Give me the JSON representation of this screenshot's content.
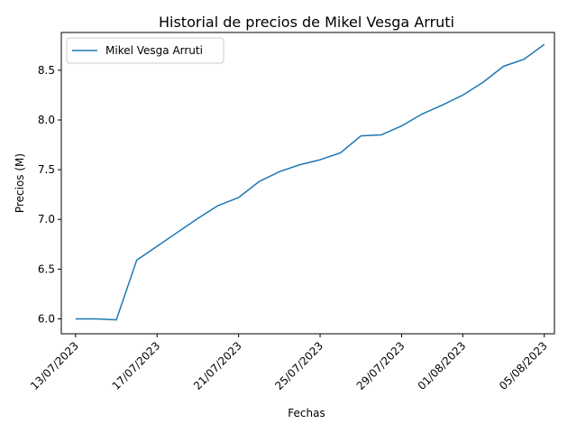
{
  "chart_data": {
    "type": "line",
    "title": "Historial de precios de Mikel Vesga Arruti",
    "xlabel": "Fechas",
    "ylabel": "Precios (M)",
    "x_ticks": [
      "13/07/2023",
      "17/07/2023",
      "21/07/2023",
      "25/07/2023",
      "29/07/2023",
      "01/08/2023",
      "05/08/2023"
    ],
    "y_ticks": [
      "6.0",
      "6.5",
      "7.0",
      "7.5",
      "8.0",
      "8.5"
    ],
    "ylim": [
      5.85,
      8.88
    ],
    "xlim": [
      "2023-07-12",
      "2023-08-06"
    ],
    "legend": "top-left",
    "grid": false,
    "series": [
      {
        "name": "Mikel Vesga Arruti",
        "color": "#1f77b4",
        "x": [
          "2023-07-13",
          "2023-07-14",
          "2023-07-15",
          "2023-07-16",
          "2023-07-17",
          "2023-07-18",
          "2023-07-19",
          "2023-07-20",
          "2023-07-21",
          "2023-07-22",
          "2023-07-23",
          "2023-07-24",
          "2023-07-25",
          "2023-07-26",
          "2023-07-27",
          "2023-07-28",
          "2023-07-29",
          "2023-07-30",
          "2023-07-31",
          "2023-08-01",
          "2023-08-02",
          "2023-08-03",
          "2023-08-04",
          "2023-08-05"
        ],
        "values": [
          6.0,
          6.0,
          5.99,
          6.59,
          6.73,
          6.87,
          7.01,
          7.14,
          7.22,
          7.38,
          7.48,
          7.55,
          7.6,
          7.67,
          7.84,
          7.85,
          7.94,
          8.06,
          8.15,
          8.25,
          8.38,
          8.54,
          8.61,
          8.76
        ]
      }
    ]
  }
}
